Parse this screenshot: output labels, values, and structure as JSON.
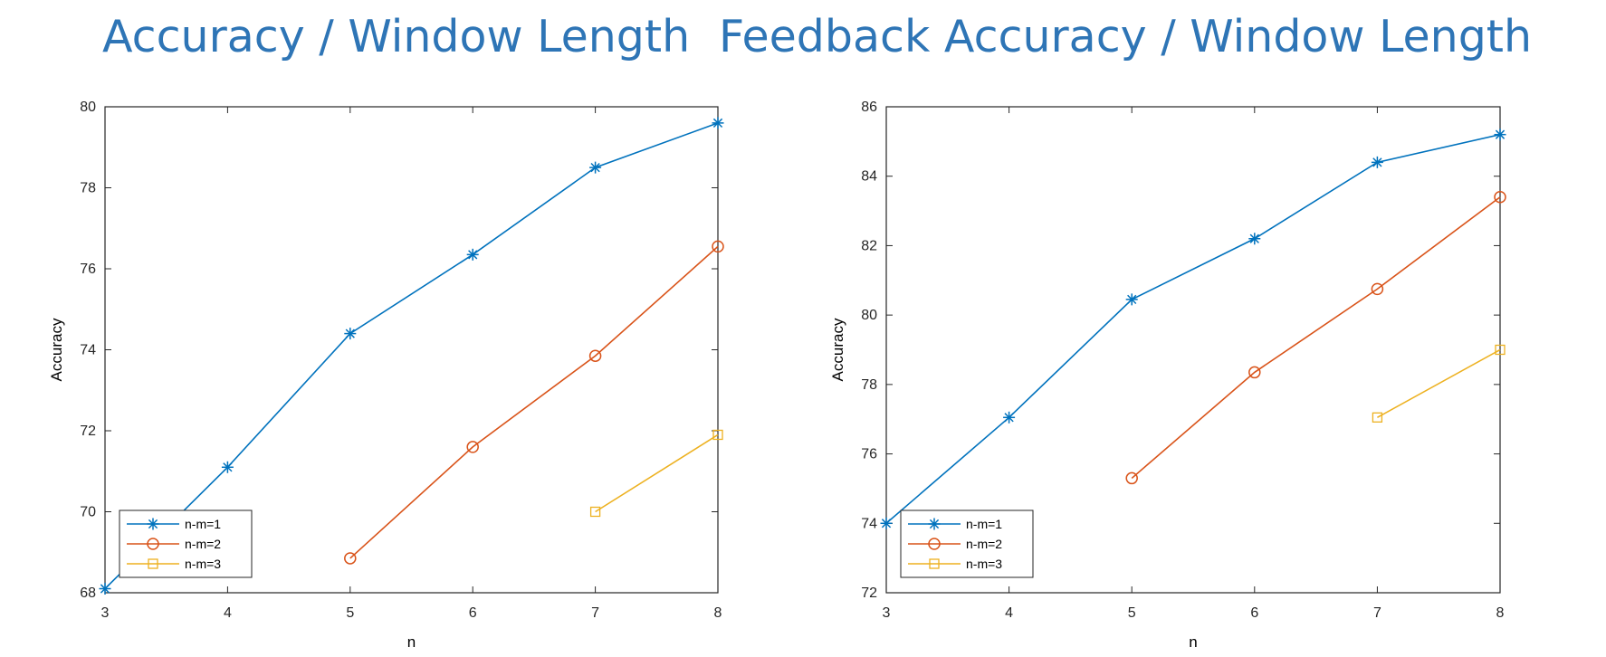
{
  "chart_data": [
    {
      "type": "line",
      "title": "Accuracy / Window Length",
      "xlabel": "n",
      "ylabel": "Accuracy",
      "xlim": [
        3,
        8
      ],
      "ylim": [
        68,
        80
      ],
      "xticks": [
        3,
        4,
        5,
        6,
        7,
        8
      ],
      "yticks": [
        68,
        70,
        72,
        74,
        76,
        78,
        80
      ],
      "grid": false,
      "legend": "bottom-left",
      "series": [
        {
          "name": "n-m=1",
          "color": "#0072BD",
          "marker": "asterisk",
          "x": [
            3,
            4,
            5,
            6,
            7,
            8
          ],
          "y": [
            68.1,
            71.1,
            74.4,
            76.35,
            78.5,
            79.6
          ]
        },
        {
          "name": "n-m=2",
          "color": "#D95319",
          "marker": "circle",
          "x": [
            5,
            6,
            7,
            8
          ],
          "y": [
            68.85,
            71.6,
            73.85,
            76.55
          ]
        },
        {
          "name": "n-m=3",
          "color": "#EDB120",
          "marker": "square",
          "x": [
            7,
            8
          ],
          "y": [
            70.0,
            71.9
          ]
        }
      ]
    },
    {
      "type": "line",
      "title": "Feedback Accuracy / Window Length",
      "xlabel": "n",
      "ylabel": "Accuracy",
      "xlim": [
        3,
        8
      ],
      "ylim": [
        72,
        86
      ],
      "xticks": [
        3,
        4,
        5,
        6,
        7,
        8
      ],
      "yticks": [
        72,
        74,
        76,
        78,
        80,
        82,
        84,
        86
      ],
      "grid": false,
      "legend": "bottom-left",
      "series": [
        {
          "name": "n-m=1",
          "color": "#0072BD",
          "marker": "asterisk",
          "x": [
            3,
            4,
            5,
            6,
            7,
            8
          ],
          "y": [
            74.0,
            77.05,
            80.45,
            82.2,
            84.4,
            85.2
          ]
        },
        {
          "name": "n-m=2",
          "color": "#D95319",
          "marker": "circle",
          "x": [
            5,
            6,
            7,
            8
          ],
          "y": [
            75.3,
            78.35,
            80.75,
            83.4
          ]
        },
        {
          "name": "n-m=3",
          "color": "#EDB120",
          "marker": "square",
          "x": [
            7,
            8
          ],
          "y": [
            77.05,
            79.0
          ]
        }
      ]
    }
  ]
}
